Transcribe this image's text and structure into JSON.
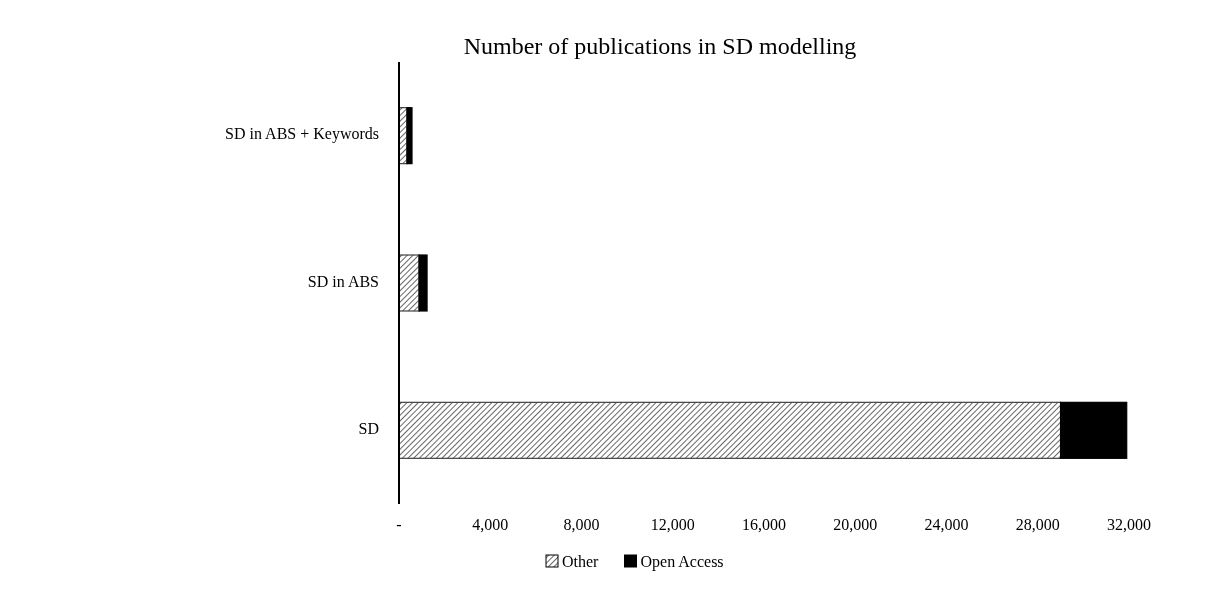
{
  "chart_data": {
    "type": "bar",
    "orientation": "horizontal",
    "stacked": true,
    "title": "Number of publications  in SD modelling",
    "categories": [
      "SD in ABS + Keywords",
      "SD in ABS",
      "SD"
    ],
    "series": [
      {
        "name": "Other",
        "color": "#404040",
        "values": [
          350,
          880,
          29000
        ]
      },
      {
        "name": "Open Access",
        "color": "#000000",
        "values": [
          220,
          350,
          2900
        ]
      }
    ],
    "xlim": [
      0,
      32000
    ],
    "xticks": [
      {
        "value": 0,
        "label": "-"
      },
      {
        "value": 4000,
        "label": "4,000"
      },
      {
        "value": 8000,
        "label": "8,000"
      },
      {
        "value": 12000,
        "label": "12,000"
      },
      {
        "value": 16000,
        "label": "16,000"
      },
      {
        "value": 20000,
        "label": "20,000"
      },
      {
        "value": 24000,
        "label": "24,000"
      },
      {
        "value": 28000,
        "label": "28,000"
      },
      {
        "value": 32000,
        "label": "32,000"
      }
    ],
    "legend": "bottom"
  }
}
